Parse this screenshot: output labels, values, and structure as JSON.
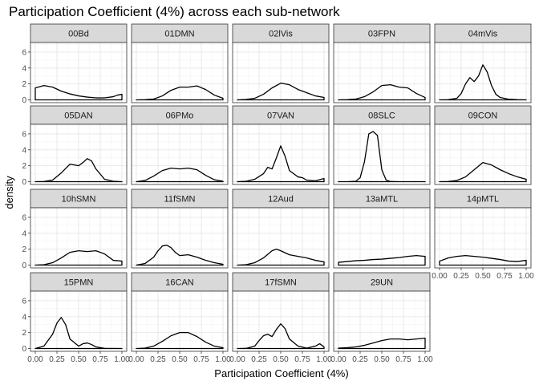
{
  "chart_data": {
    "type": "line",
    "title": "Participation Coefficient (4%) across each sub-network",
    "xlabel": "Participation Coefficient (4%)",
    "ylabel": "density",
    "xlim": [
      0,
      1
    ],
    "ylim": [
      -0.35,
      7.2
    ],
    "x_ticks": [
      0,
      0.25,
      0.5,
      0.75,
      1
    ],
    "x_tick_labels": [
      "0.00",
      "0.25",
      "0.50",
      "0.75",
      "1.00"
    ],
    "y_ticks": [
      0,
      2,
      4,
      6
    ],
    "y_tick_labels": [
      "0",
      "2",
      "4",
      "6"
    ],
    "grid": true,
    "facet_layout": {
      "columns": 5,
      "rows": 4
    },
    "series": [
      {
        "name": "00Bd",
        "x": [
          0,
          0.1,
          0.2,
          0.3,
          0.4,
          0.5,
          0.6,
          0.7,
          0.8,
          0.9,
          0.95,
          1.0
        ],
        "y": [
          1.5,
          1.8,
          1.6,
          1.1,
          0.75,
          0.5,
          0.35,
          0.25,
          0.25,
          0.4,
          0.6,
          0.7
        ]
      },
      {
        "name": "01DMN",
        "x": [
          0,
          0.1,
          0.2,
          0.3,
          0.4,
          0.5,
          0.6,
          0.7,
          0.8,
          0.9,
          1.0
        ],
        "y": [
          0,
          0.02,
          0.1,
          0.5,
          1.2,
          1.6,
          1.6,
          1.75,
          1.3,
          0.6,
          0.2
        ]
      },
      {
        "name": "02lVis",
        "x": [
          0,
          0.1,
          0.2,
          0.3,
          0.4,
          0.5,
          0.6,
          0.7,
          0.8,
          0.9,
          1.0
        ],
        "y": [
          0,
          0.05,
          0.2,
          0.7,
          1.5,
          2.1,
          1.9,
          1.3,
          0.9,
          0.5,
          0.3
        ]
      },
      {
        "name": "03FPN",
        "x": [
          0,
          0.1,
          0.2,
          0.3,
          0.4,
          0.5,
          0.6,
          0.7,
          0.8,
          0.9,
          1.0
        ],
        "y": [
          0,
          0.02,
          0.1,
          0.4,
          1.0,
          1.8,
          1.9,
          1.6,
          1.5,
          0.8,
          0.3
        ]
      },
      {
        "name": "04mVis",
        "x": [
          0,
          0.1,
          0.2,
          0.25,
          0.3,
          0.35,
          0.4,
          0.45,
          0.5,
          0.55,
          0.6,
          0.65,
          0.7,
          0.8,
          0.9,
          1.0
        ],
        "y": [
          0,
          0.02,
          0.2,
          0.8,
          2.0,
          2.8,
          2.3,
          3.0,
          4.4,
          3.5,
          1.8,
          0.7,
          0.3,
          0.08,
          0.02,
          0
        ]
      },
      {
        "name": "05DAN",
        "x": [
          0,
          0.1,
          0.2,
          0.3,
          0.4,
          0.5,
          0.55,
          0.6,
          0.65,
          0.7,
          0.8,
          0.9,
          1.0
        ],
        "y": [
          0,
          0.02,
          0.2,
          1.1,
          2.2,
          2.0,
          2.4,
          2.9,
          2.6,
          1.6,
          0.3,
          0.05,
          0
        ]
      },
      {
        "name": "06PMo",
        "x": [
          0,
          0.1,
          0.2,
          0.3,
          0.4,
          0.5,
          0.6,
          0.7,
          0.8,
          0.9,
          1.0
        ],
        "y": [
          0,
          0.15,
          0.7,
          1.4,
          1.7,
          1.6,
          1.7,
          1.5,
          0.8,
          0.25,
          0.05
        ]
      },
      {
        "name": "07VAN",
        "x": [
          0,
          0.1,
          0.2,
          0.3,
          0.35,
          0.4,
          0.45,
          0.5,
          0.55,
          0.6,
          0.65,
          0.7,
          0.75,
          0.8,
          0.9,
          1.0
        ],
        "y": [
          0,
          0.05,
          0.3,
          1.0,
          1.8,
          1.6,
          3.0,
          4.5,
          3.2,
          1.4,
          1.0,
          0.6,
          0.5,
          0.2,
          0.1,
          0.4
        ]
      },
      {
        "name": "08SLC",
        "x": [
          0,
          0.1,
          0.2,
          0.25,
          0.3,
          0.35,
          0.4,
          0.45,
          0.5,
          0.55,
          0.6,
          0.7,
          0.8,
          1.0
        ],
        "y": [
          0,
          0,
          0.05,
          0.5,
          2.5,
          6.0,
          6.3,
          5.8,
          1.5,
          0.2,
          0.02,
          0,
          0,
          0
        ]
      },
      {
        "name": "09CON",
        "x": [
          0,
          0.1,
          0.2,
          0.3,
          0.4,
          0.5,
          0.6,
          0.7,
          0.8,
          0.9,
          1.0
        ],
        "y": [
          0,
          0.02,
          0.15,
          0.6,
          1.5,
          2.4,
          2.1,
          1.5,
          1.0,
          0.6,
          0.3
        ]
      },
      {
        "name": "10hSMN",
        "x": [
          0,
          0.1,
          0.2,
          0.3,
          0.4,
          0.5,
          0.6,
          0.7,
          0.8,
          0.9,
          1.0
        ],
        "y": [
          0,
          0.05,
          0.3,
          0.9,
          1.6,
          1.8,
          1.7,
          1.8,
          1.4,
          0.6,
          0.5
        ]
      },
      {
        "name": "11fSMN",
        "x": [
          0,
          0.1,
          0.2,
          0.25,
          0.3,
          0.35,
          0.4,
          0.45,
          0.5,
          0.6,
          0.7,
          0.8,
          0.9,
          1.0
        ],
        "y": [
          0,
          0.2,
          1.0,
          1.8,
          2.4,
          2.5,
          2.2,
          1.6,
          1.2,
          1.3,
          1.0,
          0.6,
          0.3,
          0.1
        ]
      },
      {
        "name": "12Aud",
        "x": [
          0,
          0.1,
          0.2,
          0.3,
          0.4,
          0.45,
          0.5,
          0.6,
          0.7,
          0.8,
          0.9,
          1.0
        ],
        "y": [
          0,
          0.05,
          0.3,
          0.9,
          1.8,
          2.0,
          1.8,
          1.3,
          1.1,
          0.9,
          0.6,
          0.4
        ]
      },
      {
        "name": "13aMTL",
        "x": [
          0,
          0.1,
          0.2,
          0.3,
          0.4,
          0.5,
          0.6,
          0.7,
          0.8,
          0.9,
          1.0
        ],
        "y": [
          0.35,
          0.45,
          0.55,
          0.6,
          0.7,
          0.75,
          0.85,
          0.95,
          1.1,
          1.2,
          1.1
        ]
      },
      {
        "name": "14pMTL",
        "x": [
          0,
          0.1,
          0.2,
          0.3,
          0.4,
          0.5,
          0.6,
          0.7,
          0.8,
          0.9,
          1.0
        ],
        "y": [
          0.5,
          0.9,
          1.1,
          1.2,
          1.1,
          1.0,
          0.85,
          0.7,
          0.5,
          0.45,
          0.6
        ]
      },
      {
        "name": "15PMN",
        "x": [
          0,
          0.1,
          0.2,
          0.25,
          0.3,
          0.35,
          0.4,
          0.5,
          0.55,
          0.6,
          0.65,
          0.7,
          0.8,
          1.0
        ],
        "y": [
          0,
          0.3,
          1.8,
          3.2,
          3.9,
          3.0,
          1.2,
          0.3,
          0.6,
          0.7,
          0.5,
          0.2,
          0.02,
          0
        ]
      },
      {
        "name": "16CAN",
        "x": [
          0,
          0.1,
          0.2,
          0.3,
          0.4,
          0.5,
          0.6,
          0.7,
          0.8,
          0.9,
          1.0
        ],
        "y": [
          0,
          0.05,
          0.3,
          0.9,
          1.6,
          2.0,
          2.0,
          1.5,
          0.8,
          0.3,
          0.1
        ]
      },
      {
        "name": "17fSMN",
        "x": [
          0,
          0.1,
          0.2,
          0.25,
          0.3,
          0.35,
          0.4,
          0.45,
          0.5,
          0.55,
          0.6,
          0.7,
          0.8,
          0.9,
          0.95,
          1.0
        ],
        "y": [
          0,
          0.02,
          0.3,
          1.0,
          1.6,
          1.8,
          1.5,
          2.4,
          3.1,
          2.5,
          1.2,
          0.3,
          0.05,
          0.3,
          0.6,
          0.2
        ]
      },
      {
        "name": "29UN",
        "x": [
          0,
          0.1,
          0.2,
          0.3,
          0.4,
          0.5,
          0.6,
          0.7,
          0.8,
          0.9,
          1.0
        ],
        "y": [
          0.05,
          0.1,
          0.2,
          0.4,
          0.7,
          1.0,
          1.2,
          1.2,
          1.1,
          1.2,
          1.3
        ]
      }
    ]
  }
}
